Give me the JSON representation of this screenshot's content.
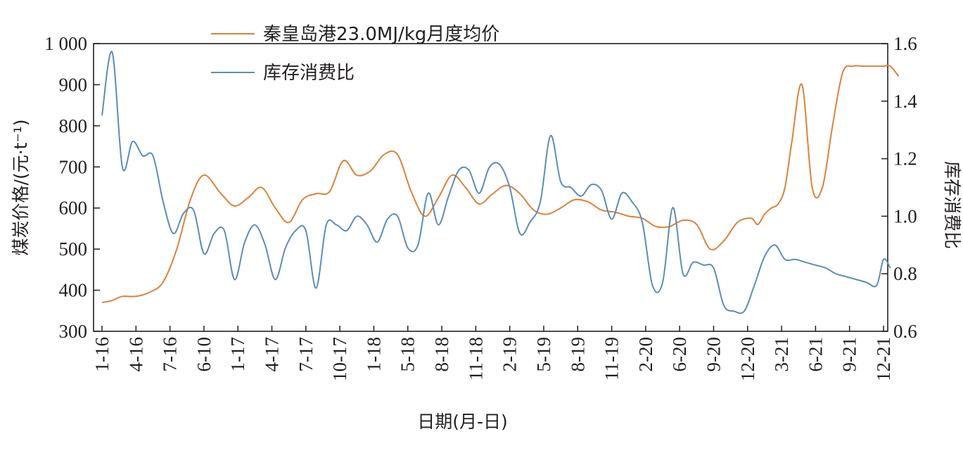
{
  "chart_data": {
    "type": "line",
    "x_tick_labels": [
      "1-16",
      "4-16",
      "7-16",
      "6-10",
      "1-17",
      "4-17",
      "7-17",
      "10-17",
      "1-18",
      "5-18",
      "8-18",
      "11-18",
      "2-19",
      "5-19",
      "8-19",
      "11-19",
      "2-20",
      "6-20",
      "9-20",
      "12-20",
      "3-21",
      "6-21",
      "9-21",
      "12-21"
    ],
    "xlabel": "日期(月-日)",
    "ylabel_left": "煤炭价格/(元·t⁻¹)",
    "ylabel_right": "库存消费比",
    "ylim_left": [
      300,
      1000
    ],
    "ylim_right": [
      0.6,
      1.6
    ],
    "yticks_left": [
      300,
      400,
      500,
      600,
      700,
      800,
      900,
      1000
    ],
    "ytick_labels_left": [
      "300",
      "400",
      "500",
      "600",
      "700",
      "800",
      "900",
      "1 000"
    ],
    "yticks_right": [
      0.6,
      0.8,
      1.0,
      1.2,
      1.4,
      1.6
    ],
    "ytick_labels_right": [
      "0.6",
      "0.8",
      "1.0",
      "1.2",
      "1.4",
      "1.6"
    ],
    "legend_position": "top-center",
    "grid": false,
    "series": [
      {
        "name": "秦皇岛港23.0MJ/kg月度均价",
        "axis": "left",
        "color": "#d9833a",
        "x": [
          0,
          0.3,
          0.6,
          1,
          1.4,
          1.8,
          2.2,
          2.6,
          3,
          3.5,
          3.9,
          4.3,
          4.7,
          5.1,
          5.5,
          5.9,
          6.3,
          6.7,
          7.1,
          7.5,
          7.9,
          8.3,
          8.7,
          9.1,
          9.5,
          9.9,
          10.3,
          10.7,
          11.1,
          11.5,
          11.9,
          12.3,
          12.7,
          13.1,
          13.5,
          13.9,
          14.3,
          14.7,
          15.1,
          15.5,
          15.9,
          16.3,
          16.7,
          17.1,
          17.5,
          17.9,
          18.3,
          18.7,
          19.1,
          19.3,
          19.5,
          19.7,
          19.9,
          20.1,
          20.3,
          20.6,
          20.9,
          21.2,
          21.5,
          21.8,
          22.1,
          22.4,
          22.7,
          23.0,
          23.2
        ],
        "values": [
          370,
          375,
          385,
          385,
          395,
          420,
          500,
          620,
          680,
          635,
          605,
          625,
          650,
          600,
          565,
          620,
          635,
          640,
          715,
          680,
          690,
          730,
          730,
          640,
          580,
          625,
          680,
          650,
          610,
          635,
          655,
          635,
          595,
          585,
          600,
          620,
          615,
          595,
          590,
          580,
          575,
          555,
          555,
          570,
          560,
          500,
          520,
          565,
          575,
          560,
          585,
          600,
          610,
          650,
          760,
          900,
          650,
          650,
          800,
          930,
          945,
          945,
          945,
          945,
          945
        ],
        "values_tail": [
          920
        ]
      },
      {
        "name": "库存消费比",
        "axis": "right",
        "color": "#5b8db8",
        "x": [
          0,
          0.3,
          0.6,
          0.9,
          1.2,
          1.5,
          1.8,
          2.1,
          2.4,
          2.7,
          3,
          3.3,
          3.6,
          3.9,
          4.2,
          4.5,
          4.8,
          5.1,
          5.4,
          5.7,
          6,
          6.3,
          6.6,
          6.9,
          7.2,
          7.5,
          7.8,
          8.1,
          8.4,
          8.7,
          9,
          9.3,
          9.6,
          9.9,
          10.2,
          10.5,
          10.8,
          11.1,
          11.4,
          11.7,
          12,
          12.3,
          12.6,
          12.9,
          13.2,
          13.5,
          13.8,
          14.1,
          14.4,
          14.7,
          15,
          15.3,
          15.6,
          15.9,
          16.2,
          16.5,
          16.8,
          17.1,
          17.4,
          17.7,
          18,
          18.3,
          18.6,
          18.9,
          19.2,
          19.5,
          19.8,
          20.1,
          20.4,
          20.7,
          21,
          21.3,
          21.6,
          21.9,
          22.2,
          22.5,
          22.8,
          23.0,
          23.2
        ],
        "values": [
          1.35,
          1.57,
          1.17,
          1.26,
          1.21,
          1.21,
          1.05,
          0.94,
          1.01,
          1.02,
          0.87,
          0.94,
          0.95,
          0.78,
          0.91,
          0.97,
          0.9,
          0.78,
          0.89,
          0.95,
          0.95,
          0.75,
          0.97,
          0.97,
          0.95,
          1.0,
          0.97,
          0.91,
          0.99,
          1.0,
          0.89,
          0.9,
          1.08,
          0.97,
          1.07,
          1.16,
          1.16,
          1.08,
          1.17,
          1.18,
          1.1,
          0.94,
          0.98,
          1.05,
          1.28,
          1.12,
          1.1,
          1.07,
          1.11,
          1.09,
          0.99,
          1.08,
          1.05,
          0.98,
          0.76,
          0.77,
          1.03,
          0.8,
          0.84,
          0.83,
          0.82,
          0.69,
          0.67,
          0.67,
          0.76,
          0.86,
          0.9,
          0.85,
          0.85,
          0.84,
          0.83,
          0.82,
          0.8,
          0.79,
          0.78,
          0.77,
          0.76,
          0.85,
          0.82
        ]
      }
    ]
  }
}
